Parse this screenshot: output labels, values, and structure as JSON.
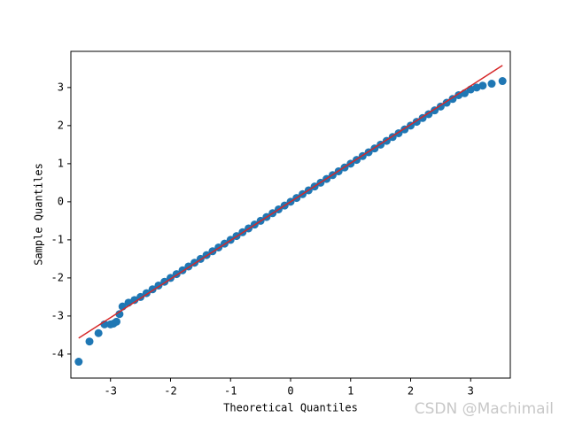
{
  "chart_data": {
    "type": "scatter",
    "x_label": "Theoretical Quantiles",
    "y_label": "Sample Quantiles",
    "watermark": "CSDN @Machimail",
    "series": [
      {
        "color": "#1f77b4",
        "x": [
          -3.53,
          -3.35,
          -3.2,
          -3.1,
          -3.0,
          -2.95,
          -2.9,
          -2.85,
          -2.8,
          -2.7,
          -2.6,
          -2.5,
          -2.4,
          -2.3,
          -2.2,
          -2.1,
          -2,
          -1.9,
          -1.8,
          -1.7,
          -1.6,
          -1.5,
          -1.4,
          -1.3,
          -1.2,
          -1.1,
          -1,
          -0.9,
          -0.8,
          -0.7,
          -0.6,
          -0.5,
          -0.4,
          -0.3,
          -0.2,
          -0.1,
          0,
          0.1,
          0.2,
          0.3,
          0.4,
          0.5,
          0.6,
          0.7,
          0.8,
          0.9,
          1,
          1.1,
          1.2,
          1.3,
          1.4,
          1.5,
          1.6,
          1.7,
          1.8,
          1.9,
          2,
          2.1,
          2.2,
          2.3,
          2.4,
          2.5,
          2.6,
          2.7,
          2.8,
          2.9,
          3.0,
          3.1,
          3.2,
          3.35,
          3.53
        ],
        "values": [
          -4.2,
          -3.67,
          -3.45,
          -3.22,
          -3.22,
          -3.2,
          -3.15,
          -2.95,
          -2.75,
          -2.65,
          -2.58,
          -2.5,
          -2.4,
          -2.3,
          -2.2,
          -2.1,
          -2,
          -1.9,
          -1.8,
          -1.7,
          -1.6,
          -1.5,
          -1.4,
          -1.3,
          -1.2,
          -1.1,
          -1,
          -0.9,
          -0.8,
          -0.7,
          -0.6,
          -0.5,
          -0.4,
          -0.3,
          -0.2,
          -0.1,
          0,
          0.1,
          0.2,
          0.3,
          0.4,
          0.5,
          0.6,
          0.7,
          0.8,
          0.9,
          1,
          1.1,
          1.2,
          1.3,
          1.4,
          1.5,
          1.6,
          1.7,
          1.8,
          1.9,
          2,
          2.1,
          2.2,
          2.3,
          2.4,
          2.5,
          2.6,
          2.7,
          2.8,
          2.85,
          2.95,
          3.0,
          3.05,
          3.1,
          3.17
        ]
      }
    ],
    "line": {
      "color": "#d62728",
      "x": [
        -3.53,
        3.53
      ],
      "values": [
        -3.58,
        3.58
      ]
    },
    "xlim": [
      -3.66,
      3.66
    ],
    "ylim": [
      -4.63,
      3.95
    ],
    "xticks": [
      -3,
      -2,
      -1,
      0,
      1,
      2,
      3
    ],
    "yticks": [
      -4,
      -3,
      -2,
      -1,
      0,
      1,
      2,
      3
    ]
  }
}
